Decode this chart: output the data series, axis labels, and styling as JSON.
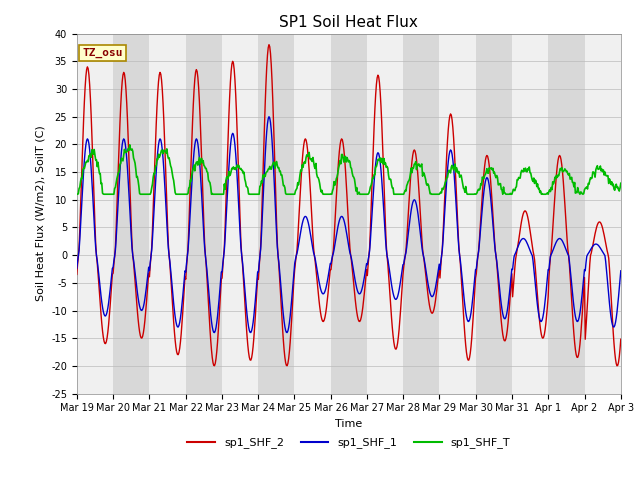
{
  "title": "SP1 Soil Heat Flux",
  "ylabel": "Soil Heat Flux (W/m2), SoilT (C)",
  "xlabel": "Time",
  "ylim": [
    -25,
    40
  ],
  "yticks": [
    -25,
    -20,
    -15,
    -10,
    -5,
    0,
    5,
    10,
    15,
    20,
    25,
    30,
    35,
    40
  ],
  "color_shf2": "#cc0000",
  "color_shf1": "#0000cc",
  "color_shft": "#00bb00",
  "color_bg_light": "#f0f0f0",
  "color_bg_dark": "#d8d8d8",
  "annotation_text": "TZ_osu",
  "annotation_bg": "#ffffcc",
  "annotation_border": "#aa8800",
  "annotation_text_color": "#880000",
  "legend_labels": [
    "sp1_SHF_2",
    "sp1_SHF_1",
    "sp1_SHF_T"
  ],
  "x_tick_labels": [
    "Mar 19",
    "Mar 20",
    "Mar 21",
    "Mar 22",
    "Mar 23",
    "Mar 24",
    "Mar 25",
    "Mar 26",
    "Mar 27",
    "Mar 28",
    "Mar 29",
    "Mar 30",
    "Mar 31",
    "Apr 1",
    "Apr 2",
    "Apr 3"
  ],
  "n_days": 15,
  "pts_per_day": 48,
  "title_fontsize": 11,
  "axis_fontsize": 8,
  "tick_fontsize": 7,
  "legend_fontsize": 8
}
